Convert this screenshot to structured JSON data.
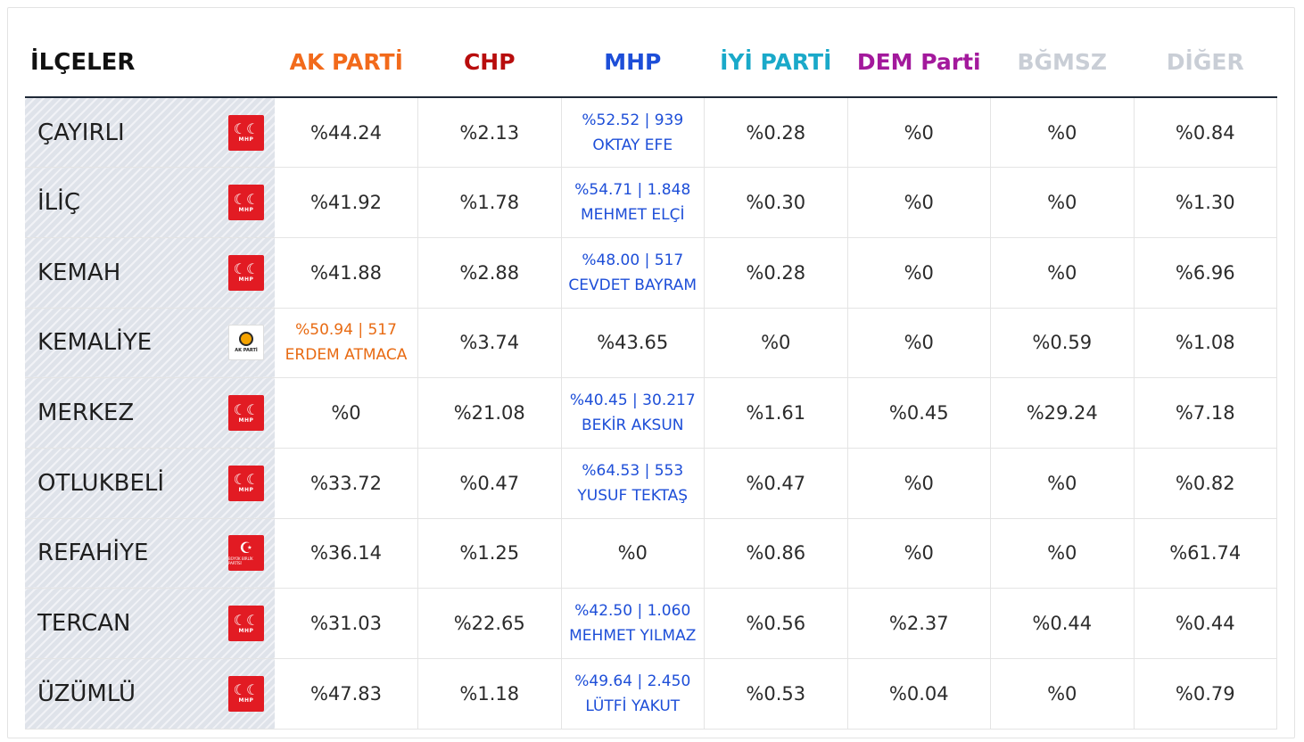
{
  "header": {
    "district": {
      "label": "İLÇELER",
      "color": "#111111"
    },
    "parties": [
      {
        "label": "AK PARTİ",
        "color": "#f26a1b"
      },
      {
        "label": "CHP",
        "color": "#b80d0d"
      },
      {
        "label": "MHP",
        "color": "#1d4ed8"
      },
      {
        "label": "İYİ PARTİ",
        "color": "#1aa9c9"
      },
      {
        "label": "DEM Parti",
        "color": "#a3199c"
      },
      {
        "label": "BĞMSZ",
        "color": "#c9ced6"
      },
      {
        "label": "DİĞER",
        "color": "#c9ced6"
      }
    ]
  },
  "rows": [
    {
      "district": "ÇAYIRLI",
      "logo": "mhp-logo",
      "logo_text": "MHP",
      "cells": [
        "%44.24",
        "%2.13",
        "%52.52 | 939",
        "%0.28",
        "%0",
        "%0",
        "%0.84"
      ],
      "winner_name": "OKTAY EFE"
    },
    {
      "district": "İLİÇ",
      "logo": "mhp-logo",
      "logo_text": "MHP",
      "cells": [
        "%41.92",
        "%1.78",
        "%54.71 | 1.848",
        "%0.30",
        "%0",
        "%0",
        "%1.30"
      ],
      "winner_name": "MEHMET ELÇİ"
    },
    {
      "district": "KEMAH",
      "logo": "mhp-logo",
      "logo_text": "MHP",
      "cells": [
        "%41.88",
        "%2.88",
        "%48.00 | 517",
        "%0.28",
        "%0",
        "%0",
        "%6.96"
      ],
      "winner_name": "CEVDET BAYRAM"
    },
    {
      "district": "KEMALİYE",
      "logo": "akp-logo",
      "logo_text": "AK PARTİ",
      "cells": [
        "%50.94 | 517",
        "%3.74",
        "%43.65",
        "%0",
        "%0",
        "%0.59",
        "%1.08"
      ],
      "winner_name": "ERDEM ATMACA"
    },
    {
      "district": "MERKEZ",
      "logo": "mhp-logo",
      "logo_text": "MHP",
      "cells": [
        "%0",
        "%21.08",
        "%40.45 | 30.217",
        "%1.61",
        "%0.45",
        "%29.24",
        "%7.18"
      ],
      "winner_name": "BEKİR AKSUN"
    },
    {
      "district": "OTLUKBELİ",
      "logo": "mhp-logo",
      "logo_text": "MHP",
      "cells": [
        "%33.72",
        "%0.47",
        "%64.53 | 553",
        "%0.47",
        "%0",
        "%0",
        "%0.82"
      ],
      "winner_name": "YUSUF TEKTAŞ"
    },
    {
      "district": "REFAHİYE",
      "logo": "bbp-logo",
      "logo_text": "BÜYÜK BİRLİK PARTİSİ",
      "cells": [
        "%36.14",
        "%1.25",
        "%0",
        "%0.86",
        "%0",
        "%0",
        "%61.74"
      ],
      "winner_name": ""
    },
    {
      "district": "TERCAN",
      "logo": "mhp-logo",
      "logo_text": "MHP",
      "cells": [
        "%31.03",
        "%22.65",
        "%42.50 | 1.060",
        "%0.56",
        "%2.37",
        "%0.44",
        "%0.44"
      ],
      "winner_name": "MEHMET YILMAZ"
    },
    {
      "district": "ÜZÜMLÜ",
      "logo": "mhp-logo",
      "logo_text": "MHP",
      "cells": [
        "%47.83",
        "%1.18",
        "%49.64 | 2.450",
        "%0.53",
        "%0.04",
        "%0",
        "%0.79"
      ],
      "winner_name": "LÜTFİ YAKUT"
    }
  ],
  "winner_colors": {
    "mhp": "#1d4ed8",
    "akp": "#e86a12"
  }
}
